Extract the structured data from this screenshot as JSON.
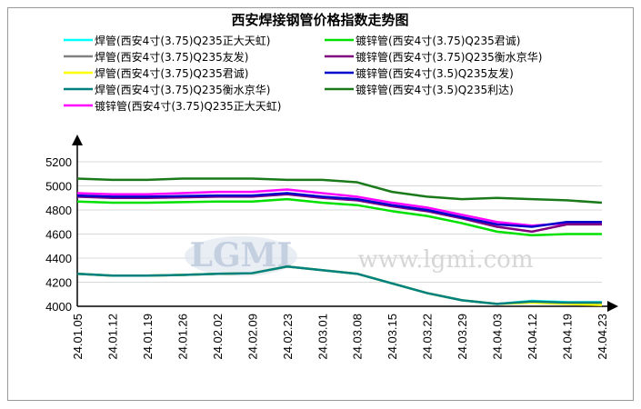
{
  "chart_data": {
    "type": "line",
    "title": "西安焊接钢管价格指数走势图",
    "watermark_logo": "LGMI",
    "watermark": "www.lgmi.com",
    "categories": [
      "24.01.05",
      "24.01.12",
      "24.01.19",
      "24.01.26",
      "24.02.02",
      "24.02.09",
      "24.02.23",
      "24.03.01",
      "24.03.08",
      "24.03.15",
      "24.03.22",
      "24.03.29",
      "24.04.03",
      "24.04.12",
      "24.04.19",
      "24.04.23"
    ],
    "ylim": [
      4000,
      5200
    ],
    "yticks": [
      4000,
      4200,
      4400,
      4600,
      4800,
      5000,
      5200
    ],
    "grid": true,
    "series": [
      {
        "name": "焊管(西安4寸(3.75)Q235正大天虹)",
        "color": "#00ffff",
        "values": [
          4270,
          4255,
          4255,
          4260,
          4270,
          4275,
          4330,
          4300,
          4270,
          4190,
          4110,
          4050,
          4020,
          4045,
          4035,
          4035
        ]
      },
      {
        "name": "焊管(西安4寸(3.75)Q235友发)",
        "color": "#808080",
        "values": [
          4270,
          4255,
          4255,
          4260,
          4270,
          4275,
          4330,
          4300,
          4270,
          4190,
          4110,
          4050,
          4020,
          4040,
          4030,
          4030
        ]
      },
      {
        "name": "焊管(西安4寸(3.75)Q235君诚)",
        "color": "#ffff00",
        "values": [
          4270,
          4255,
          4255,
          4260,
          4270,
          4275,
          4330,
          4300,
          4270,
          4190,
          4110,
          4050,
          4020,
          4030,
          4020,
          4010
        ]
      },
      {
        "name": "焊管(西安4寸(3.75)Q235衡水京华)",
        "color": "#008080",
        "values": [
          4270,
          4255,
          4255,
          4260,
          4270,
          4275,
          4330,
          4300,
          4270,
          4190,
          4110,
          4050,
          4020,
          4040,
          4030,
          4030
        ]
      },
      {
        "name": "镀锌管(西安4寸(3.75)Q235正大天虹)",
        "color": "#ff00ff",
        "values": [
          4940,
          4930,
          4930,
          4940,
          4950,
          4950,
          4970,
          4940,
          4910,
          4860,
          4820,
          4760,
          4700,
          4670,
          4690,
          4690
        ]
      },
      {
        "name": "镀锌管(西安4寸(3.75)Q235君诚)",
        "color": "#00e000",
        "values": [
          4870,
          4860,
          4860,
          4865,
          4870,
          4870,
          4890,
          4860,
          4840,
          4790,
          4750,
          4690,
          4620,
          4590,
          4600,
          4600
        ]
      },
      {
        "name": "镀锌管(西安4寸(3.75)Q235衡水京华)",
        "color": "#800080",
        "values": [
          4910,
          4900,
          4900,
          4905,
          4910,
          4910,
          4930,
          4900,
          4880,
          4830,
          4790,
          4730,
          4660,
          4620,
          4680,
          4680
        ]
      },
      {
        "name": "镀锌管(西安4寸(3.5)Q235友发)",
        "color": "#0000cc",
        "values": [
          4920,
          4910,
          4910,
          4915,
          4920,
          4920,
          4940,
          4910,
          4890,
          4840,
          4800,
          4740,
          4680,
          4660,
          4700,
          4700
        ]
      },
      {
        "name": "镀锌管(西安4寸(3.5)Q235利达)",
        "color": "#1a7a1a",
        "values": [
          5060,
          5050,
          5050,
          5060,
          5060,
          5060,
          5050,
          5050,
          5030,
          4950,
          4910,
          4890,
          4900,
          4890,
          4880,
          4860
        ]
      }
    ]
  }
}
